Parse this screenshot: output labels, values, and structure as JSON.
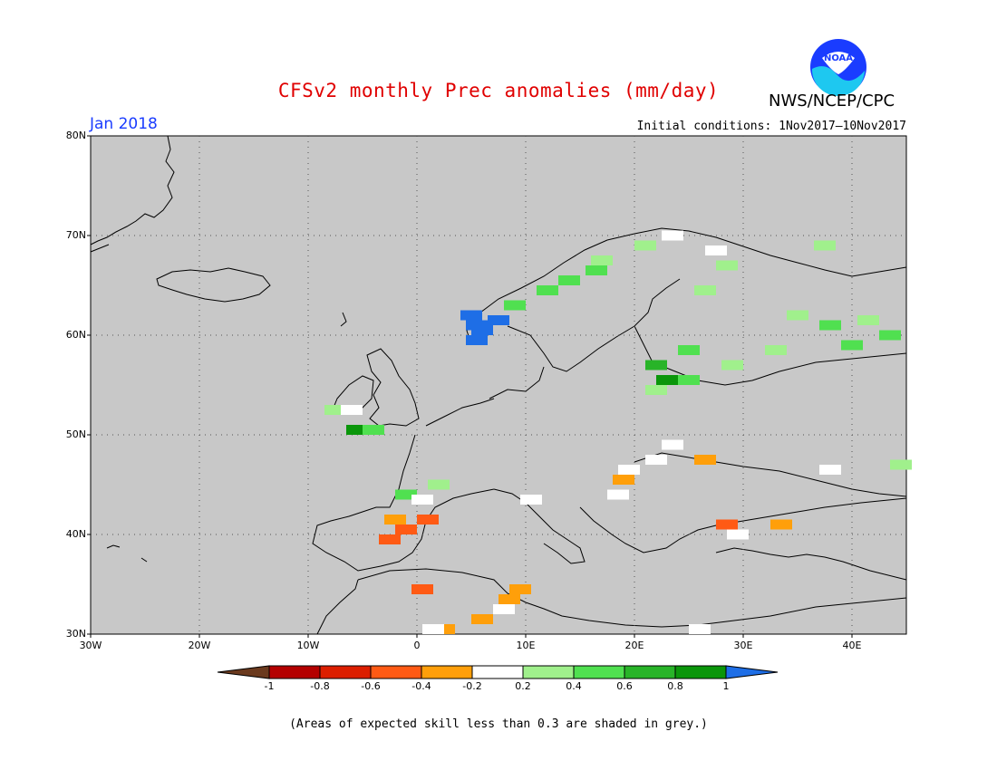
{
  "header": {
    "title": "CFSv2 monthly Prec anomalies (mm/day)",
    "org": "NWS/NCEP/CPC",
    "month": "Jan 2018",
    "initial_conditions": "Initial conditions: 1Nov2017—10Nov2017",
    "logo_text": "NOAA"
  },
  "map": {
    "background_color": "#c8c8c8",
    "lat_labels": [
      "80N",
      "70N",
      "60N",
      "50N",
      "40N",
      "30N"
    ],
    "lon_labels": [
      "30W",
      "20W",
      "10W",
      "0",
      "10E",
      "20E",
      "30E",
      "40E"
    ],
    "lon_range": [
      -30,
      45
    ],
    "lat_range": [
      30,
      80
    ]
  },
  "colorbar": {
    "labels": [
      "-1",
      "-0.8",
      "-0.6",
      "-0.4",
      "-0.2",
      "0.2",
      "0.4",
      "0.6",
      "0.8",
      "1"
    ],
    "colors": [
      "#6b3a1e",
      "#b40000",
      "#dc1e00",
      "#ff5a14",
      "#ff9f0a",
      "#ffffff",
      "#a0f08c",
      "#50e050",
      "#28b428",
      "#0a960a",
      "#1e6ee6"
    ]
  },
  "anomaly_cells": [
    {
      "lon": 5.0,
      "lat": 62.0,
      "value": 1.1
    },
    {
      "lon": 5.5,
      "lat": 61.0,
      "value": 1.1
    },
    {
      "lon": 6.0,
      "lat": 60.5,
      "value": 1.1
    },
    {
      "lon": 5.5,
      "lat": 59.5,
      "value": 1.1
    },
    {
      "lon": 7.5,
      "lat": 61.5,
      "value": 1.1
    },
    {
      "lon": 9.0,
      "lat": 63.0,
      "value": 0.5
    },
    {
      "lon": 12.0,
      "lat": 64.5,
      "value": 0.5
    },
    {
      "lon": 14.0,
      "lat": 65.5,
      "value": 0.5
    },
    {
      "lon": 16.5,
      "lat": 66.5,
      "value": 0.5
    },
    {
      "lon": 17.0,
      "lat": 67.5,
      "value": 0.3
    },
    {
      "lon": 21.0,
      "lat": 69.0,
      "value": 0.3
    },
    {
      "lon": 23.5,
      "lat": 70.0,
      "value": 0.1
    },
    {
      "lon": 27.5,
      "lat": 68.5,
      "value": 0.1
    },
    {
      "lon": 28.5,
      "lat": 67.0,
      "value": 0.3
    },
    {
      "lon": 26.5,
      "lat": 64.5,
      "value": 0.3
    },
    {
      "lon": 37.5,
      "lat": 69.0,
      "value": 0.3
    },
    {
      "lon": 35.0,
      "lat": 62.0,
      "value": 0.3
    },
    {
      "lon": 38.0,
      "lat": 61.0,
      "value": 0.5
    },
    {
      "lon": 41.5,
      "lat": 61.5,
      "value": 0.3
    },
    {
      "lon": 43.5,
      "lat": 60.0,
      "value": 0.5
    },
    {
      "lon": 40.0,
      "lat": 59.0,
      "value": 0.5
    },
    {
      "lon": 33.0,
      "lat": 58.5,
      "value": 0.3
    },
    {
      "lon": 29.0,
      "lat": 57.0,
      "value": 0.3
    },
    {
      "lon": 25.0,
      "lat": 58.5,
      "value": 0.5
    },
    {
      "lon": 22.0,
      "lat": 57.0,
      "value": 0.7
    },
    {
      "lon": 23.0,
      "lat": 55.5,
      "value": 0.9
    },
    {
      "lon": 25.0,
      "lat": 55.5,
      "value": 0.5
    },
    {
      "lon": 22.0,
      "lat": 54.5,
      "value": 0.3
    },
    {
      "lon": -7.5,
      "lat": 52.5,
      "value": 0.3
    },
    {
      "lon": -6.0,
      "lat": 52.5,
      "value": 0.1
    },
    {
      "lon": -5.5,
      "lat": 50.5,
      "value": 0.9
    },
    {
      "lon": -4.0,
      "lat": 50.5,
      "value": 0.5
    },
    {
      "lon": -1.0,
      "lat": 44.0,
      "value": 0.5
    },
    {
      "lon": 2.0,
      "lat": 45.0,
      "value": 0.3
    },
    {
      "lon": 0.5,
      "lat": 43.5,
      "value": 0.1
    },
    {
      "lon": 10.5,
      "lat": 43.5,
      "value": 0.1
    },
    {
      "lon": 44.5,
      "lat": 47.0,
      "value": 0.3
    },
    {
      "lon": 23.5,
      "lat": 49.0,
      "value": 0.1
    },
    {
      "lon": 22.0,
      "lat": 47.5,
      "value": 0.1
    },
    {
      "lon": 19.5,
      "lat": 46.5,
      "value": 0.1
    },
    {
      "lon": 26.5,
      "lat": 47.5,
      "value": -0.3
    },
    {
      "lon": 19.0,
      "lat": 45.5,
      "value": -0.3
    },
    {
      "lon": 18.5,
      "lat": 44.0,
      "value": 0.1
    },
    {
      "lon": 38.0,
      "lat": 46.5,
      "value": 0.1
    },
    {
      "lon": -2.0,
      "lat": 41.5,
      "value": -0.3
    },
    {
      "lon": -1.0,
      "lat": 40.5,
      "value": -0.5
    },
    {
      "lon": 1.0,
      "lat": 41.5,
      "value": -0.5
    },
    {
      "lon": -2.5,
      "lat": 39.5,
      "value": -0.5
    },
    {
      "lon": 28.5,
      "lat": 41.0,
      "value": -0.5
    },
    {
      "lon": 29.5,
      "lat": 40.0,
      "value": 0.1
    },
    {
      "lon": 33.5,
      "lat": 41.0,
      "value": -0.3
    },
    {
      "lon": 0.5,
      "lat": 34.5,
      "value": -0.5
    },
    {
      "lon": 8.5,
      "lat": 33.5,
      "value": -0.3
    },
    {
      "lon": 9.5,
      "lat": 34.5,
      "value": -0.3
    },
    {
      "lon": 6.0,
      "lat": 31.5,
      "value": -0.3
    },
    {
      "lon": 2.5,
      "lat": 30.5,
      "value": -0.3
    },
    {
      "lon": 8.0,
      "lat": 32.5,
      "value": 0.1
    },
    {
      "lon": 26.0,
      "lat": 30.5,
      "value": 0.1
    },
    {
      "lon": 1.5,
      "lat": 30.5,
      "value": 0.1
    }
  ],
  "footnote": "(Areas of expected skill less than 0.3 are shaded in grey.)"
}
